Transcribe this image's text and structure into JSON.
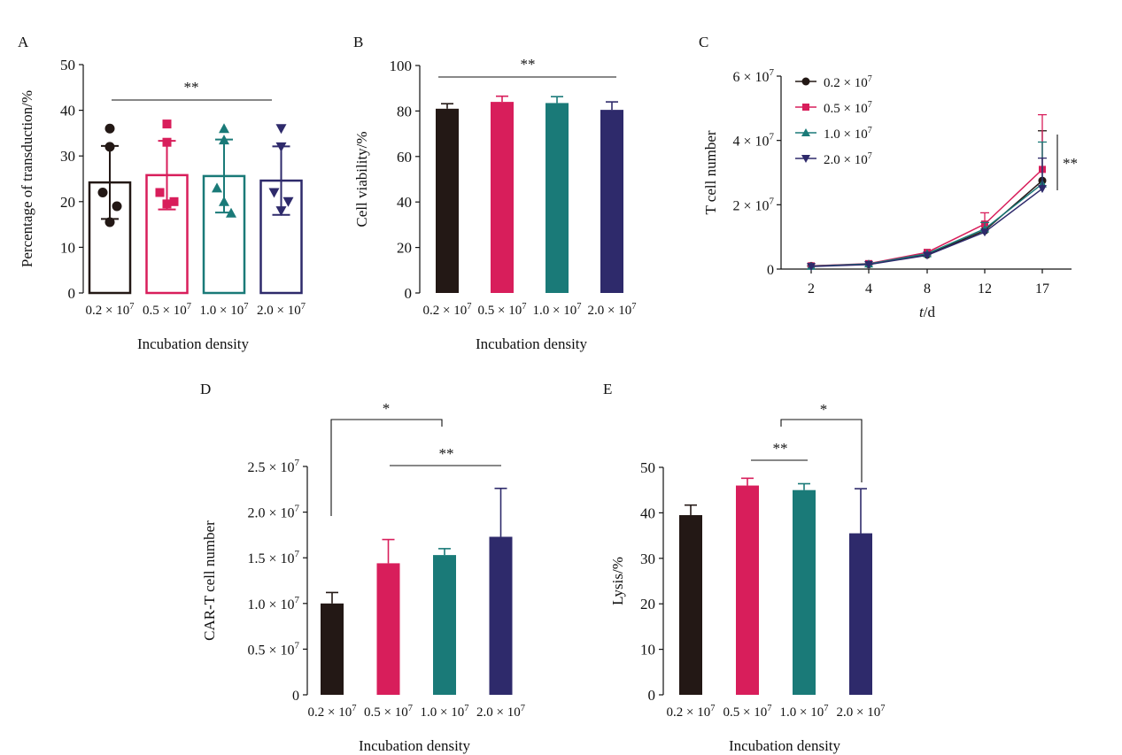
{
  "colors": {
    "d0_2": "#231815",
    "d0_5": "#d81e5b",
    "d1_0": "#1a7a78",
    "d2_0": "#2e2a6b"
  },
  "chart_data": [
    {
      "panel": "A",
      "type": "bar",
      "style": "hollow-bar-with-points",
      "ylabel": "Percentage of transduction/%",
      "xlabel": "Incubation density",
      "categories": [
        "0.2 × 10^7",
        "0.5 × 10^7",
        "1.0 × 10^7",
        "2.0 × 10^7"
      ],
      "values": [
        24.2,
        25.8,
        25.6,
        24.6
      ],
      "errors": [
        8.0,
        7.5,
        8.0,
        7.5
      ],
      "points": [
        [
          36,
          32,
          22,
          19,
          15.5
        ],
        [
          37,
          33,
          22,
          20,
          19.5
        ],
        [
          36,
          33.5,
          23,
          17.5,
          20
        ],
        [
          36,
          32,
          22,
          20,
          18
        ]
      ],
      "ylim": [
        0,
        50
      ],
      "yticks": [
        "0",
        "10",
        "20",
        "30",
        "40",
        "50"
      ],
      "significance": [
        {
          "from": 0,
          "to": 3,
          "label": "**"
        }
      ]
    },
    {
      "panel": "B",
      "type": "bar",
      "ylabel": "Cell viability/%",
      "xlabel": "Incubation density",
      "categories": [
        "0.2 × 10^7",
        "0.5 × 10^7",
        "1.0 × 10^7",
        "2.0 × 10^7"
      ],
      "values": [
        81,
        84,
        83.5,
        80.5
      ],
      "errors": [
        2.2,
        2.5,
        2.8,
        3.5
      ],
      "ylim": [
        0,
        100
      ],
      "yticks": [
        "0",
        "20",
        "40",
        "60",
        "80",
        "100"
      ],
      "significance": [
        {
          "from": 0,
          "to": 3,
          "label": "**"
        }
      ]
    },
    {
      "panel": "C",
      "type": "line",
      "ylabel": "T cell number",
      "xlabel_italic": "t",
      "xlabel_rest": "/d",
      "x": [
        "2",
        "4",
        "8",
        "12",
        "17"
      ],
      "ylim": [
        0,
        60000000
      ],
      "yticks": [
        {
          "mant": "0",
          "exp": ""
        },
        {
          "mant": "2 × 10",
          "exp": "7"
        },
        {
          "mant": "4 × 10",
          "exp": "7"
        },
        {
          "mant": "6 × 10",
          "exp": "7"
        }
      ],
      "series": [
        {
          "name": "0.2 × 10^7",
          "legend_mant": "0.2 × 10",
          "legend_exp": "7",
          "marker": "circle",
          "values": [
            1000000,
            1500000,
            4500000,
            12000000,
            27500000
          ],
          "errors": [
            0,
            0,
            0,
            0,
            15500000
          ]
        },
        {
          "name": "0.5 × 10^7",
          "legend_mant": "0.5 × 10",
          "legend_exp": "7",
          "marker": "square",
          "values": [
            1000000,
            1700000,
            5200000,
            14000000,
            31000000
          ],
          "errors": [
            0,
            0,
            0,
            3500000,
            17000000
          ]
        },
        {
          "name": "1.0 × 10^7",
          "legend_mant": "1.0 × 10",
          "legend_exp": "7",
          "marker": "triangle-up",
          "values": [
            900000,
            1600000,
            4800000,
            12500000,
            26500000
          ],
          "errors": [
            0,
            0,
            0,
            2000000,
            13000000
          ]
        },
        {
          "name": "2.0 × 10^7",
          "legend_mant": "2.0 × 10",
          "legend_exp": "7",
          "marker": "triangle-down",
          "values": [
            800000,
            1400000,
            4300000,
            11500000,
            25000000
          ],
          "errors": [
            0,
            0,
            0,
            0,
            9500000
          ]
        }
      ],
      "significance": [
        {
          "label": "**"
        }
      ]
    },
    {
      "panel": "D",
      "type": "bar",
      "ylabel": "CAR-T cell number",
      "xlabel": "Incubation density",
      "categories": [
        "0.2 × 10^7",
        "0.5 × 10^7",
        "1.0 × 10^7",
        "2.0 × 10^7"
      ],
      "values": [
        10000000,
        14400000,
        15300000,
        17300000
      ],
      "errors": [
        1200000,
        2600000,
        700000,
        5300000
      ],
      "ylim": [
        0,
        25000000
      ],
      "yticks": [
        {
          "mant": "0",
          "exp": ""
        },
        {
          "mant": "0.5 × 10",
          "exp": "7"
        },
        {
          "mant": "1.0 × 10",
          "exp": "7"
        },
        {
          "mant": "1.5 × 10",
          "exp": "7"
        },
        {
          "mant": "2.0 × 10",
          "exp": "7"
        },
        {
          "mant": "2.5 × 10",
          "exp": "7"
        }
      ],
      "significance": [
        {
          "from": 0,
          "to": 2,
          "label": "*"
        },
        {
          "from": 1,
          "to": 3,
          "label": "**"
        }
      ]
    },
    {
      "panel": "E",
      "type": "bar",
      "ylabel": "Lysis/%",
      "xlabel": "Incubation density",
      "categories": [
        "0.2 × 10^7",
        "0.5 × 10^7",
        "1.0 × 10^7",
        "2.0 × 10^7"
      ],
      "values": [
        39.5,
        46,
        45,
        35.5
      ],
      "errors": [
        2.2,
        1.6,
        1.4,
        9.8
      ],
      "ylim": [
        0,
        50
      ],
      "yticks": [
        "0",
        "10",
        "20",
        "30",
        "40",
        "50"
      ],
      "significance": [
        {
          "from": 1,
          "to": 2,
          "label": "**"
        },
        {
          "from": 2,
          "to": 3,
          "label": "*"
        }
      ]
    }
  ]
}
